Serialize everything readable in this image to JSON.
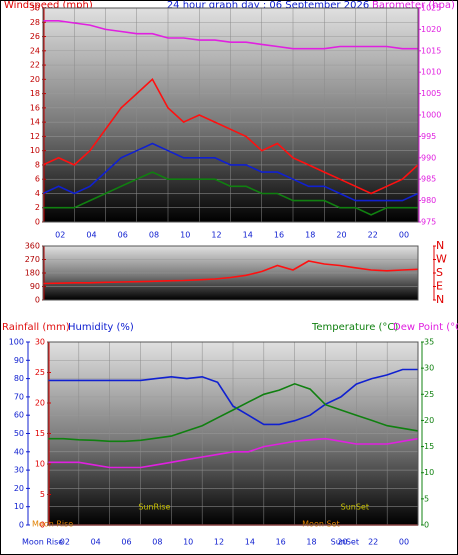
{
  "chart_data": [
    {
      "type": "line",
      "title": "24 hour graph day : 06 September 2026",
      "y_label": "Windspeed (mph)",
      "y2_label": "Barometer (hpa)",
      "x": [
        0,
        1,
        2,
        3,
        4,
        5,
        6,
        7,
        8,
        9,
        10,
        11,
        12,
        13,
        14,
        15,
        16,
        17,
        18,
        19,
        20,
        21,
        22,
        23,
        24
      ],
      "xlim": [
        0,
        24
      ],
      "xticks": [
        {
          "value": 2,
          "label": "02"
        },
        {
          "value": 4,
          "label": "04"
        },
        {
          "value": 6,
          "label": "06"
        },
        {
          "value": 8,
          "label": "08"
        },
        10,
        12,
        14,
        16,
        18,
        20,
        22,
        {
          "value": 24,
          "label": "00"
        }
      ],
      "ylim": [
        0,
        30
      ],
      "yticks": [
        0,
        2,
        4,
        6,
        8,
        10,
        12,
        14,
        16,
        18,
        20,
        22,
        24,
        26,
        28,
        30
      ],
      "y2lim": [
        975,
        1025
      ],
      "y2ticks": [
        975,
        980,
        985,
        990,
        995,
        1000,
        1005,
        1010,
        1015,
        1020,
        1025
      ],
      "series": [
        {
          "color": "#ff1010",
          "values": [
            8,
            9,
            8,
            10,
            13,
            16,
            18,
            20,
            16,
            14,
            15,
            14,
            13,
            12,
            10,
            11,
            9,
            8,
            7,
            6,
            5,
            4,
            5,
            6,
            8
          ]
        },
        {
          "color": "#1020d0",
          "values": [
            4,
            5,
            4,
            5,
            7,
            9,
            10,
            11,
            10,
            9,
            9,
            9,
            8,
            8,
            7,
            7,
            6,
            5,
            5,
            4,
            3,
            3,
            3,
            3,
            4
          ]
        },
        {
          "color": "#108010",
          "values": [
            2,
            2,
            2,
            3,
            4,
            5,
            6,
            7,
            6,
            6,
            6,
            6,
            5,
            5,
            4,
            4,
            3,
            3,
            3,
            2,
            2,
            1,
            2,
            2,
            2
          ]
        },
        {
          "color": "#e020e0",
          "axis": "y2",
          "values": [
            1022,
            1022,
            1021.5,
            1021,
            1020,
            1019.5,
            1019,
            1019,
            1018,
            1018,
            1017.5,
            1017.5,
            1017,
            1017,
            1016.5,
            1016,
            1015.5,
            1015.5,
            1015.5,
            1016,
            1016,
            1016,
            1016,
            1015.5,
            1015.5
          ]
        }
      ]
    },
    {
      "type": "line",
      "x": [
        0,
        1,
        2,
        3,
        4,
        5,
        6,
        7,
        8,
        9,
        10,
        11,
        12,
        13,
        14,
        15,
        16,
        17,
        18,
        19,
        20,
        21,
        22,
        23,
        24
      ],
      "xlim": [
        0,
        24
      ],
      "ylim": [
        0,
        360
      ],
      "yticks": [
        0,
        90,
        180,
        270,
        360
      ],
      "y2lim": [
        0,
        360
      ],
      "y2ticks": [
        {
          "value": 0,
          "label": "N"
        },
        {
          "value": 90,
          "label": "E"
        },
        {
          "value": 180,
          "label": "S"
        },
        {
          "value": 270,
          "label": "W"
        },
        {
          "value": 360,
          "label": "N"
        }
      ],
      "series": [
        {
          "color": "#ff1010",
          "values": [
            110,
            112,
            115,
            115,
            118,
            120,
            122,
            125,
            128,
            130,
            135,
            140,
            150,
            165,
            190,
            230,
            200,
            260,
            240,
            230,
            215,
            200,
            195,
            200,
            205
          ]
        }
      ]
    },
    {
      "type": "line",
      "x": [
        0,
        1,
        2,
        3,
        4,
        5,
        6,
        7,
        8,
        9,
        10,
        11,
        12,
        13,
        14,
        15,
        16,
        17,
        18,
        19,
        20,
        21,
        22,
        23,
        24
      ],
      "xlim": [
        0,
        24
      ],
      "xticks": [
        {
          "value": 2,
          "label": "02"
        },
        {
          "value": 4,
          "label": "04"
        },
        {
          "value": 6,
          "label": "06"
        },
        {
          "value": 8,
          "label": "08"
        },
        10,
        12,
        14,
        16,
        18,
        20,
        22,
        {
          "value": 24,
          "label": "00"
        }
      ],
      "ylim": [
        0,
        100
      ],
      "yticks": [
        0,
        10,
        20,
        30,
        40,
        50,
        60,
        70,
        80,
        90,
        100
      ],
      "y3lim": [
        0,
        30
      ],
      "y3ticks": [
        0,
        5,
        10,
        15,
        20,
        25,
        30
      ],
      "y2lim": [
        0,
        35
      ],
      "y2ticks": [
        0,
        5,
        10,
        15,
        20,
        25,
        30,
        35
      ],
      "series": [
        {
          "name": "Rainfall (mm)",
          "color": "#e01010",
          "axis": "y3",
          "values": [
            0,
            0,
            0,
            0,
            0,
            0,
            0,
            0,
            0,
            0,
            0,
            0,
            0,
            0,
            0,
            0,
            0,
            0,
            0,
            0,
            0,
            0,
            0,
            0,
            0
          ]
        },
        {
          "name": "Humidity (%)",
          "color": "#1020d0",
          "values": [
            79,
            79,
            79,
            79,
            79,
            79,
            79,
            80,
            81,
            80,
            81,
            78,
            65,
            60,
            55,
            55,
            57,
            60,
            66,
            70,
            77,
            80,
            82,
            85,
            85
          ]
        },
        {
          "name": "Temperature (°C)",
          "color": "#108010",
          "axis": "y2",
          "values": [
            16.5,
            16.5,
            16.3,
            16.2,
            16,
            16,
            16.2,
            16.6,
            17,
            18,
            19,
            20.5,
            22,
            23.5,
            25,
            25.8,
            27,
            26,
            23,
            22,
            21,
            20,
            19,
            18.5,
            18
          ]
        },
        {
          "name": "Dew Point (°C)",
          "color": "#e020e0",
          "axis": "y2",
          "values": [
            12,
            12,
            12,
            11.5,
            11,
            11,
            11,
            11.5,
            12,
            12.5,
            13,
            13.5,
            14,
            14,
            15,
            15.5,
            16,
            16.3,
            16.5,
            16,
            15.5,
            15.5,
            15.5,
            16,
            16.5
          ]
        }
      ],
      "annotations": [
        {
          "text": "Moon Rise",
          "x": 0.3
        },
        {
          "text": "SunRise",
          "x": 6.9
        },
        {
          "text": "SunSet",
          "x": 19.9
        },
        {
          "text": "Moon Set",
          "x": 17.7
        }
      ]
    }
  ]
}
